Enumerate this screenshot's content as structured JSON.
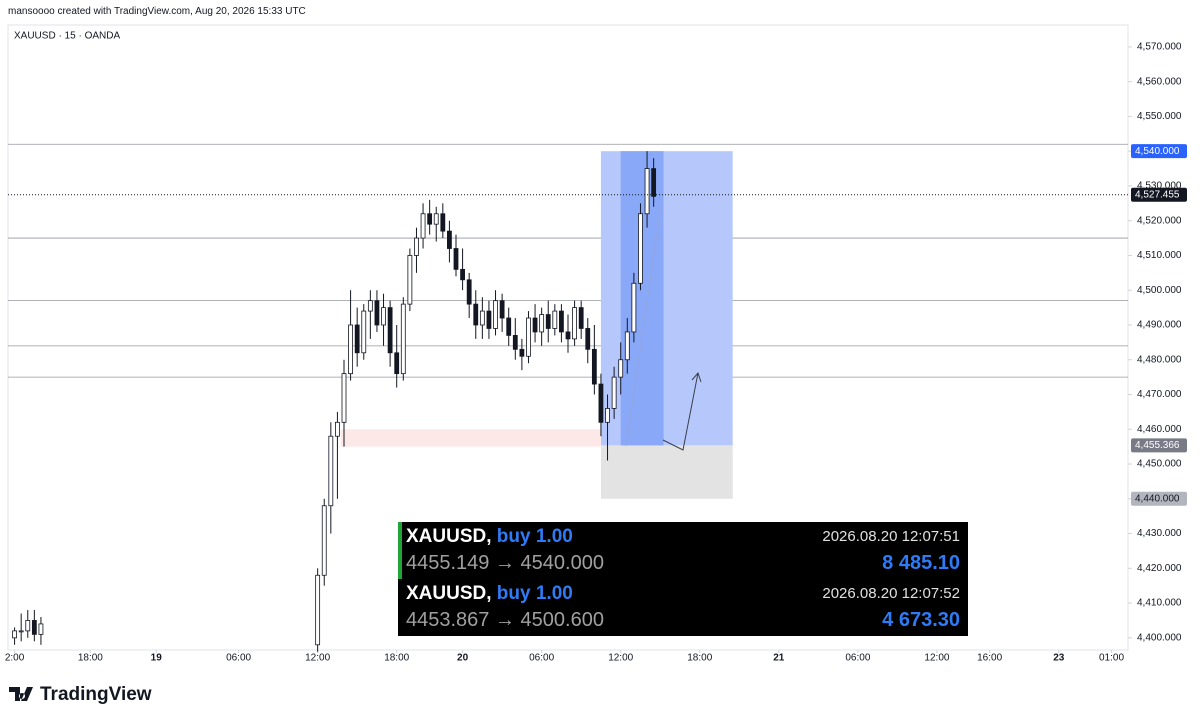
{
  "header": {
    "credit": "mansoooo created with TradingView.com, Aug 20, 2026 15:33 UTC"
  },
  "chart_data": {
    "type": "candlestick",
    "title": "XAUUSD · 15 · OANDA",
    "candle_color": "#131722",
    "x": [
      2,
      4,
      6,
      8,
      10,
      94,
      96,
      98,
      100,
      102,
      104,
      106,
      108,
      110,
      112,
      114,
      116,
      118,
      120,
      122,
      124,
      126,
      128,
      130,
      132,
      134,
      136,
      138,
      140,
      142,
      144,
      146,
      148,
      150,
      152,
      154,
      156,
      158,
      160,
      162,
      164,
      166,
      168,
      170,
      172,
      174,
      176,
      178,
      180,
      182,
      184,
      186,
      188,
      190,
      192,
      194,
      196
    ],
    "open": [
      4400,
      4402,
      4402,
      4405,
      4401,
      4398,
      4418,
      4438,
      4458,
      4462,
      4476,
      4490,
      4482,
      4494,
      4497,
      4490,
      4495,
      4482,
      4476,
      4496,
      4510,
      4515,
      4522,
      4519,
      4522,
      4517,
      4512,
      4506,
      4503,
      4496,
      4490,
      4494,
      4489,
      4497,
      4492,
      4487,
      4483,
      4481,
      4492,
      4488,
      4493,
      4489,
      4494,
      4488,
      4486,
      4495,
      4489,
      4483,
      4473,
      4462,
      4466,
      4475,
      4480,
      4488,
      4502,
      4522,
      4535
    ],
    "high": [
      4403,
      4407,
      4408,
      4408,
      4406,
      4420,
      4440,
      4462,
      4465,
      4480,
      4500,
      4495,
      4496,
      4500,
      4500,
      4499,
      4497,
      4490,
      4498,
      4512,
      4518,
      4525,
      4526,
      4524,
      4525,
      4520,
      4516,
      4512,
      4505,
      4500,
      4498,
      4497,
      4500,
      4499,
      4495,
      4492,
      4486,
      4494,
      4496,
      4495,
      4497,
      4496,
      4496,
      4493,
      4497,
      4497,
      4492,
      4490,
      4476,
      4470,
      4478,
      4485,
      4492,
      4505,
      4525,
      4540,
      4538
    ],
    "low": [
      4398,
      4399,
      4400,
      4399,
      4398,
      4396,
      4415,
      4430,
      4440,
      4455,
      4474,
      4478,
      4480,
      4486,
      4488,
      4484,
      4478,
      4472,
      4474,
      4494,
      4505,
      4512,
      4516,
      4514,
      4515,
      4508,
      4504,
      4500,
      4492,
      4486,
      4486,
      4486,
      4487,
      4488,
      4484,
      4480,
      4477,
      4479,
      4485,
      4484,
      4485,
      4487,
      4485,
      4482,
      4484,
      4486,
      4479,
      4470,
      4458,
      4451,
      4463,
      4470,
      4476,
      4485,
      4500,
      4518,
      4524
    ],
    "close": [
      4402,
      4402,
      4405,
      4401,
      4404,
      4418,
      4438,
      4458,
      4462,
      4476,
      4490,
      4482,
      4494,
      4497,
      4490,
      4495,
      4482,
      4476,
      4496,
      4510,
      4515,
      4522,
      4519,
      4522,
      4517,
      4512,
      4506,
      4503,
      4496,
      4490,
      4494,
      4489,
      4497,
      4492,
      4487,
      4483,
      4481,
      4492,
      4488,
      4493,
      4489,
      4494,
      4488,
      4486,
      4495,
      4489,
      4483,
      4473,
      4462,
      4466,
      4475,
      4480,
      4488,
      4502,
      4522,
      4535,
      4527
    ],
    "xlim": [
      0,
      340
    ],
    "ylim": [
      4396.5,
      4576.3
    ],
    "xticks": [
      {
        "value": 2,
        "label": "2:00"
      },
      {
        "value": 25,
        "label": "18:00"
      },
      {
        "value": 45,
        "label": "19"
      },
      {
        "value": 70,
        "label": "06:00"
      },
      {
        "value": 94,
        "label": "12:00"
      },
      {
        "value": 118,
        "label": "18:00"
      },
      {
        "value": 138,
        "label": "20"
      },
      {
        "value": 162,
        "label": "06:00"
      },
      {
        "value": 186,
        "label": "12:00"
      },
      {
        "value": 210,
        "label": "18:00"
      },
      {
        "value": 234,
        "label": "21"
      },
      {
        "value": 258,
        "label": "06:00"
      },
      {
        "value": 282,
        "label": "12:00"
      },
      {
        "value": 298,
        "label": "16:00"
      },
      {
        "value": 319,
        "label": "23"
      },
      {
        "value": 335,
        "label": "01:00"
      }
    ],
    "yticks": [
      {
        "value": 4400,
        "label": "4,400.000"
      },
      {
        "value": 4410,
        "label": "4,410.000"
      },
      {
        "value": 4420,
        "label": "4,420.000"
      },
      {
        "value": 4430,
        "label": "4,430.000"
      },
      {
        "value": 4440,
        "label": "4,440.000"
      },
      {
        "value": 4450,
        "label": "4,450.000"
      },
      {
        "value": 4460,
        "label": "4,460.000"
      },
      {
        "value": 4470,
        "label": "4,470.000"
      },
      {
        "value": 4480,
        "label": "4,480.000"
      },
      {
        "value": 4490,
        "label": "4,490.000"
      },
      {
        "value": 4500,
        "label": "4,500.000"
      },
      {
        "value": 4510,
        "label": "4,510.000"
      },
      {
        "value": 4520,
        "label": "4,520.000"
      },
      {
        "value": 4530,
        "label": "4,530.000"
      },
      {
        "value": 4540,
        "label": "4,540.000"
      },
      {
        "value": 4550,
        "label": "4,550.000"
      },
      {
        "value": 4560,
        "label": "4,560.000"
      },
      {
        "value": 4570,
        "label": "4,570.000"
      }
    ],
    "hlines": [
      4542,
      4515,
      4497,
      4484,
      4475
    ],
    "zones": [
      {
        "from": 4455,
        "to": 4460,
        "x_start": 101,
        "x_end": 180,
        "color": "#fde8e8"
      }
    ],
    "position": {
      "target": 4540,
      "entry": 4455.366,
      "stop": 4440,
      "x_start": 180,
      "x_end": 220,
      "fill_x_start": 186,
      "fill_x_end": 199,
      "target_color": "#b6c8fb",
      "fill_color": "#8aa8f8",
      "stop_color": "#e3e3e3"
    },
    "price_tags": [
      {
        "value": 4540,
        "label": "4,540.000",
        "color": "#2962ff",
        "text_color": "#ffffff"
      },
      {
        "value": 4527.455,
        "label": "4,527.455",
        "color": "#131722",
        "text_color": "#ffffff",
        "line": "dotted"
      },
      {
        "value": 4455.366,
        "label": "4,455.366",
        "color": "#787b86",
        "text_color": "#ffffff"
      },
      {
        "value": 4440,
        "label": "4,440.000",
        "color": "#b2b5be",
        "text_color": "#131722"
      }
    ]
  },
  "trades": [
    {
      "symbol": "XAUUSD,",
      "side": "buy 1.00",
      "time": "2026.08.20 12:07:51",
      "prices": "4455.149 → 4540.000",
      "profit": "8 485.10"
    },
    {
      "symbol": "XAUUSD,",
      "side": "buy 1.00",
      "time": "2026.08.20 12:07:52",
      "prices": "4453.867 → 4500.600",
      "profit": "4 673.30"
    }
  ],
  "footer": {
    "brand": "TradingView"
  }
}
